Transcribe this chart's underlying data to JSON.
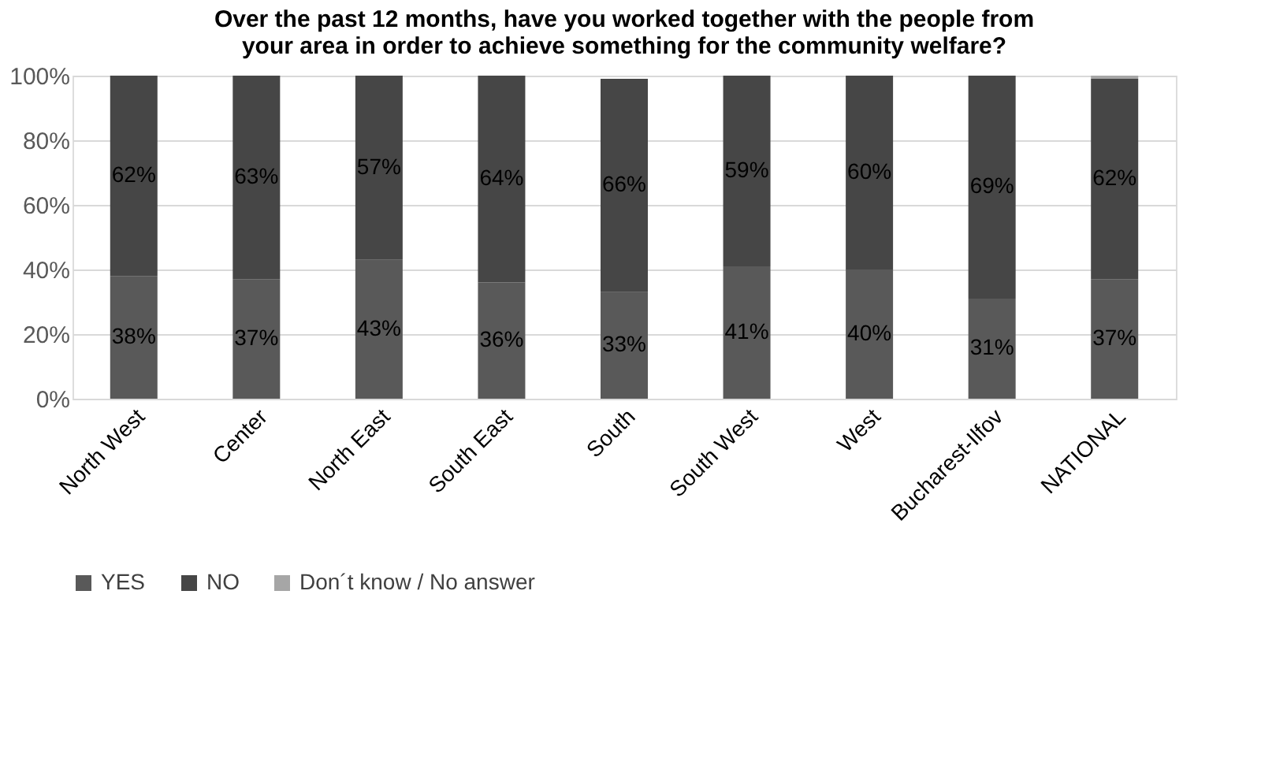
{
  "chart_data": {
    "type": "bar",
    "stacked": true,
    "title": [
      "Over the past 12 months, have you worked together with the people from",
      "your area in order to achieve something for the community welfare?"
    ],
    "categories": [
      "North West",
      "Center",
      "North East",
      "South East",
      "South",
      "South West",
      "West",
      "Bucharest-Ilfov",
      "NATIONAL"
    ],
    "series": [
      {
        "name": "YES",
        "color": "#595959",
        "values": [
          38,
          37,
          43,
          36,
          33,
          41,
          40,
          31,
          37
        ],
        "value_labels": [
          "38%",
          "37%",
          "43%",
          "36%",
          "33%",
          "41%",
          "40%",
          "31%",
          "37%"
        ]
      },
      {
        "name": "NO",
        "color": "#464646",
        "values": [
          62,
          63,
          57,
          64,
          66,
          59,
          60,
          69,
          62
        ],
        "value_labels": [
          "62%",
          "63%",
          "57%",
          "64%",
          "66%",
          "59%",
          "60%",
          "69%",
          "62%"
        ]
      },
      {
        "name": "Don´t know / No answer",
        "color": "#a6a6a6",
        "values": [
          0,
          0,
          0,
          0,
          0,
          0,
          0,
          0,
          1
        ]
      }
    ],
    "ylim": [
      0,
      100
    ],
    "yticks": [
      {
        "value": 0,
        "label": "0%"
      },
      {
        "value": 20,
        "label": "20%"
      },
      {
        "value": 40,
        "label": "40%"
      },
      {
        "value": 60,
        "label": "60%"
      },
      {
        "value": 80,
        "label": "80%"
      },
      {
        "value": 100,
        "label": "100%"
      }
    ],
    "grid": "y",
    "legend": "bottom"
  }
}
